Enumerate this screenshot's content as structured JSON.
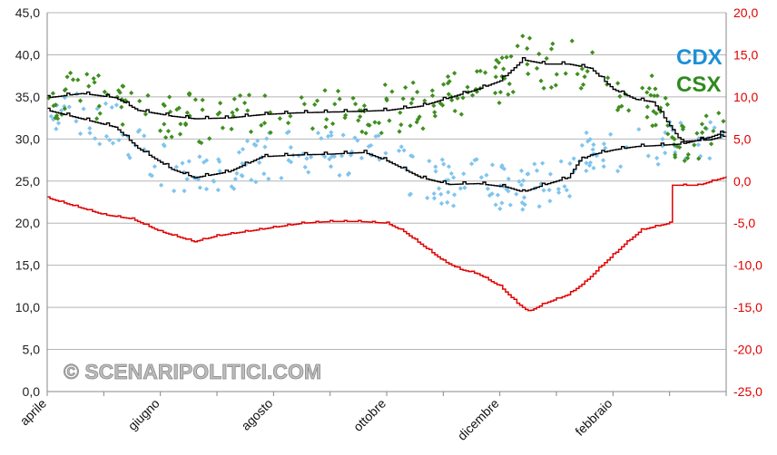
{
  "chart_data": {
    "type": "scatter",
    "y_left": {
      "range": [
        0,
        45
      ],
      "ticks": [
        "0,0",
        "5,0",
        "10,0",
        "15,0",
        "20,0",
        "25,0",
        "30,0",
        "35,0",
        "40,0",
        "45,0"
      ]
    },
    "y_right": {
      "range": [
        -25,
        20
      ],
      "ticks": [
        "-25,0",
        "-20,0",
        "-15,0",
        "-10,0",
        "-5,0",
        "0,0",
        "5,0",
        "10,0",
        "15,0",
        "20,0"
      ],
      "color": "#e00000"
    },
    "x_ticks": [
      {
        "label": "aprile",
        "month": 0
      },
      {
        "label": "giugno",
        "month": 2
      },
      {
        "label": "agosto",
        "month": 4
      },
      {
        "label": "ottobre",
        "month": 6
      },
      {
        "label": "dicembre",
        "month": 8
      },
      {
        "label": "febbraio",
        "month": 10
      }
    ],
    "x_range_months": [
      0,
      12
    ],
    "grid": true,
    "legend": [
      {
        "label": "CDX",
        "color": "#1c8fd8"
      },
      {
        "label": "CSX",
        "color": "#2e8b1e"
      }
    ],
    "watermark": "© SCENARIPOLITICI.COM",
    "series": [
      {
        "name": "CDX",
        "kind": "points",
        "axis": "left",
        "color": "#7fc4ee",
        "trend": [
          [
            0,
            33.5
          ],
          [
            0.6,
            32.5
          ],
          [
            1.2,
            31.5
          ],
          [
            1.6,
            29
          ],
          [
            2.2,
            26.5
          ],
          [
            2.6,
            25.5
          ],
          [
            3.2,
            26.2
          ],
          [
            3.8,
            28
          ],
          [
            4.4,
            28.2
          ],
          [
            5,
            28.3
          ],
          [
            5.6,
            28.5
          ],
          [
            6,
            27.5
          ],
          [
            6.6,
            25.5
          ],
          [
            7.1,
            24.7
          ],
          [
            7.6,
            24.8
          ],
          [
            8.1,
            24.4
          ],
          [
            8.4,
            23.8
          ],
          [
            8.8,
            24.7
          ],
          [
            9.2,
            25.5
          ],
          [
            9.4,
            27.5
          ],
          [
            9.6,
            28.2
          ],
          [
            10,
            28.8
          ],
          [
            10.4,
            29.2
          ],
          [
            10.7,
            29.3
          ],
          [
            11.2,
            29.5
          ],
          [
            11.7,
            30.3
          ],
          [
            12,
            31
          ]
        ],
        "spread": 2.8
      },
      {
        "name": "CSX",
        "kind": "points",
        "axis": "left",
        "color": "#3f8f1f",
        "trend": [
          [
            0,
            35
          ],
          [
            0.6,
            35.5
          ],
          [
            1.2,
            35
          ],
          [
            1.6,
            33.5
          ],
          [
            2.2,
            32.8
          ],
          [
            2.6,
            32.5
          ],
          [
            3.2,
            32.6
          ],
          [
            3.8,
            33
          ],
          [
            4.4,
            33.2
          ],
          [
            5,
            33.3
          ],
          [
            5.6,
            33.4
          ],
          [
            6,
            33.5
          ],
          [
            6.6,
            34
          ],
          [
            7.1,
            35
          ],
          [
            7.6,
            36
          ],
          [
            8,
            37
          ],
          [
            8.4,
            39.5
          ],
          [
            8.8,
            39
          ],
          [
            9.2,
            39
          ],
          [
            9.6,
            38.5
          ],
          [
            10,
            36
          ],
          [
            10.4,
            34.8
          ],
          [
            10.7,
            34.5
          ],
          [
            11.2,
            29.8
          ],
          [
            11.7,
            30
          ],
          [
            12,
            30.5
          ]
        ],
        "spread": 3.0
      },
      {
        "name": "",
        "kind": "line",
        "axis": "right",
        "color": "#e00000",
        "values": [
          [
            0,
            -2
          ],
          [
            0.5,
            -3
          ],
          [
            1,
            -4
          ],
          [
            1.5,
            -4.5
          ],
          [
            2,
            -6
          ],
          [
            2.4,
            -6.8
          ],
          [
            2.6,
            -7.2
          ],
          [
            3,
            -6.5
          ],
          [
            3.5,
            -6
          ],
          [
            4,
            -5.5
          ],
          [
            4.5,
            -5
          ],
          [
            5,
            -4.8
          ],
          [
            5.5,
            -4.8
          ],
          [
            6,
            -5
          ],
          [
            6.3,
            -6
          ],
          [
            6.6,
            -7.5
          ],
          [
            7,
            -9.5
          ],
          [
            7.3,
            -10.5
          ],
          [
            7.6,
            -11
          ],
          [
            8,
            -12.5
          ],
          [
            8.3,
            -14.5
          ],
          [
            8.5,
            -15.5
          ],
          [
            8.8,
            -14.5
          ],
          [
            9.2,
            -13.5
          ],
          [
            9.5,
            -12
          ],
          [
            9.8,
            -10
          ],
          [
            10.2,
            -7.5
          ],
          [
            10.5,
            -5.8
          ],
          [
            10.8,
            -5.3
          ],
          [
            11,
            -5
          ],
          [
            11.05,
            -0.5
          ],
          [
            11.5,
            -0.5
          ],
          [
            12,
            0.5
          ]
        ]
      }
    ]
  }
}
